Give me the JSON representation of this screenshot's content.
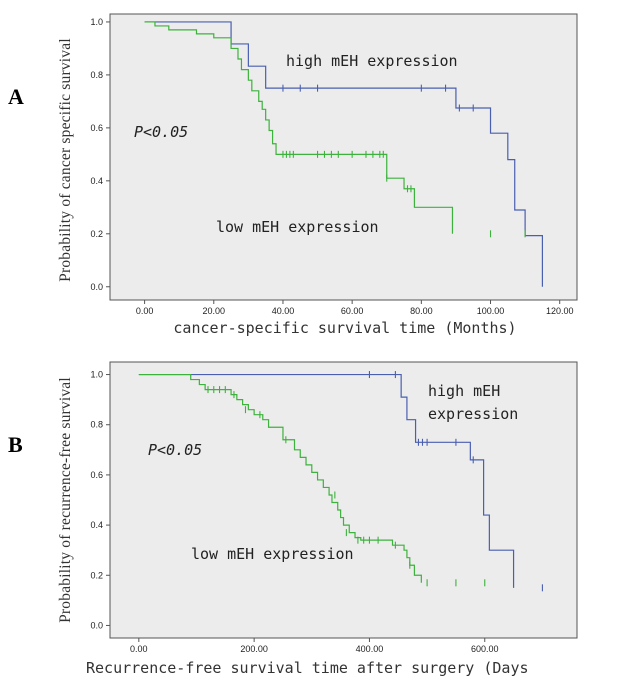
{
  "chart_data": [
    {
      "type": "line",
      "subtype": "kaplan-meier",
      "panel_label": "A",
      "ylabel": "Probability of cancer specific survival",
      "xlabel": "cancer-specific survival time (Months)",
      "xlim": [
        -10,
        125
      ],
      "ylim": [
        -0.05,
        1.03
      ],
      "x_ticks": [
        "0.00",
        "20.00",
        "40.00",
        "60.00",
        "80.00",
        "100.00",
        "120.00"
      ],
      "y_ticks": [
        "0.0",
        "0.2",
        "0.4",
        "0.6",
        "0.8",
        "1.0"
      ],
      "annotation_p": "P<0.05",
      "grid": false,
      "series": [
        {
          "label_text": "high mEH expression",
          "color": "#4a5fb0",
          "steps": [
            [
              0,
              1.0
            ],
            [
              25,
              0.917
            ],
            [
              30,
              0.833
            ],
            [
              35,
              0.75
            ],
            [
              90,
              0.675
            ],
            [
              100,
              0.58
            ],
            [
              105,
              0.48
            ],
            [
              107,
              0.29
            ],
            [
              110,
              0.193
            ],
            [
              115,
              0.0
            ]
          ],
          "censored": [
            [
              40,
              0.75
            ],
            [
              45,
              0.75
            ],
            [
              50,
              0.75
            ],
            [
              80,
              0.75
            ],
            [
              87,
              0.75
            ],
            [
              91,
              0.675
            ],
            [
              95,
              0.675
            ]
          ]
        },
        {
          "label_text": "low mEH expression",
          "color": "#3db23d",
          "steps": [
            [
              0,
              1.0
            ],
            [
              3,
              0.985
            ],
            [
              7,
              0.97
            ],
            [
              15,
              0.955
            ],
            [
              20,
              0.94
            ],
            [
              25,
              0.9
            ],
            [
              27,
              0.86
            ],
            [
              28,
              0.82
            ],
            [
              30,
              0.78
            ],
            [
              31,
              0.74
            ],
            [
              33,
              0.7
            ],
            [
              34,
              0.67
            ],
            [
              35,
              0.63
            ],
            [
              36,
              0.59
            ],
            [
              37,
              0.54
            ],
            [
              38,
              0.5
            ],
            [
              70,
              0.41
            ],
            [
              75,
              0.37
            ],
            [
              78,
              0.3
            ],
            [
              89,
              0.2
            ]
          ],
          "censored": [
            [
              40,
              0.5
            ],
            [
              41,
              0.5
            ],
            [
              42,
              0.5
            ],
            [
              43,
              0.5
            ],
            [
              50,
              0.5
            ],
            [
              52,
              0.5
            ],
            [
              54,
              0.5
            ],
            [
              56,
              0.5
            ],
            [
              60,
              0.5
            ],
            [
              64,
              0.5
            ],
            [
              66,
              0.5
            ],
            [
              68,
              0.5
            ],
            [
              69,
              0.5
            ],
            [
              70,
              0.41
            ],
            [
              76,
              0.37
            ],
            [
              77,
              0.37
            ],
            [
              100,
              0.2
            ],
            [
              110,
              0.2
            ]
          ]
        }
      ]
    },
    {
      "type": "line",
      "subtype": "kaplan-meier",
      "panel_label": "B",
      "ylabel": "Probability of recurrence-free survival",
      "xlabel": "Recurrence-free survival time after surgery (Days",
      "xlim": [
        -50,
        760
      ],
      "ylim": [
        -0.05,
        1.05
      ],
      "x_ticks": [
        "0.00",
        "200.00",
        "400.00",
        "600.00"
      ],
      "y_ticks": [
        "0.0",
        "0.2",
        "0.4",
        "0.6",
        "0.8",
        "1.0"
      ],
      "annotation_p": "P<0.05",
      "grid": false,
      "series": [
        {
          "label_text": "high mEH expression",
          "color": "#4a5fb0",
          "steps": [
            [
              0,
              1.0
            ],
            [
              455,
              0.91
            ],
            [
              465,
              0.82
            ],
            [
              480,
              0.73
            ],
            [
              575,
              0.66
            ],
            [
              598,
              0.44
            ],
            [
              608,
              0.3
            ],
            [
              650,
              0.15
            ]
          ],
          "censored": [
            [
              400,
              1.0
            ],
            [
              445,
              1.0
            ],
            [
              485,
              0.73
            ],
            [
              492,
              0.73
            ],
            [
              500,
              0.73
            ],
            [
              550,
              0.73
            ],
            [
              580,
              0.66
            ],
            [
              700,
              0.15
            ]
          ]
        },
        {
          "label_text": "low mEH expression",
          "color": "#3db23d",
          "steps": [
            [
              0,
              1.0
            ],
            [
              90,
              0.98
            ],
            [
              105,
              0.96
            ],
            [
              115,
              0.94
            ],
            [
              160,
              0.92
            ],
            [
              170,
              0.9
            ],
            [
              180,
              0.88
            ],
            [
              190,
              0.86
            ],
            [
              200,
              0.84
            ],
            [
              215,
              0.82
            ],
            [
              225,
              0.79
            ],
            [
              250,
              0.74
            ],
            [
              270,
              0.7
            ],
            [
              280,
              0.67
            ],
            [
              290,
              0.64
            ],
            [
              300,
              0.61
            ],
            [
              310,
              0.58
            ],
            [
              320,
              0.55
            ],
            [
              330,
              0.52
            ],
            [
              335,
              0.49
            ],
            [
              345,
              0.46
            ],
            [
              350,
              0.43
            ],
            [
              355,
              0.4
            ],
            [
              365,
              0.37
            ],
            [
              375,
              0.35
            ],
            [
              385,
              0.34
            ],
            [
              440,
              0.32
            ],
            [
              460,
              0.3
            ],
            [
              465,
              0.27
            ],
            [
              470,
              0.24
            ],
            [
              478,
              0.2
            ],
            [
              490,
              0.17
            ]
          ],
          "censored": [
            [
              120,
              0.94
            ],
            [
              130,
              0.94
            ],
            [
              140,
              0.94
            ],
            [
              150,
              0.94
            ],
            [
              165,
              0.92
            ],
            [
              185,
              0.86
            ],
            [
              210,
              0.84
            ],
            [
              255,
              0.74
            ],
            [
              340,
              0.52
            ],
            [
              360,
              0.37
            ],
            [
              380,
              0.34
            ],
            [
              390,
              0.34
            ],
            [
              400,
              0.34
            ],
            [
              415,
              0.34
            ],
            [
              445,
              0.32
            ],
            [
              470,
              0.24
            ],
            [
              500,
              0.17
            ],
            [
              550,
              0.17
            ],
            [
              600,
              0.17
            ]
          ]
        }
      ]
    }
  ]
}
